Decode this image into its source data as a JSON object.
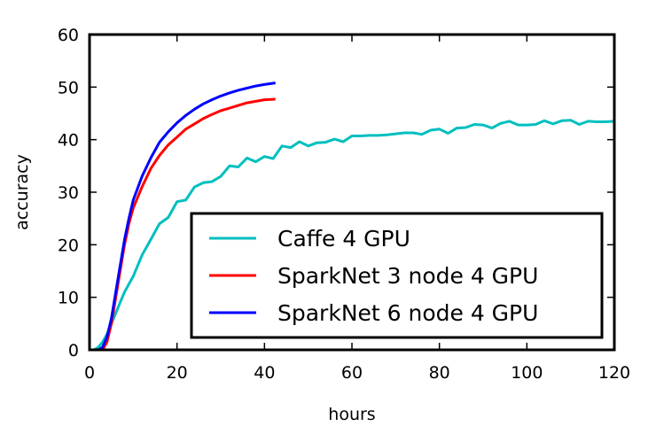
{
  "chart_data": {
    "type": "line",
    "xlabel": "hours",
    "ylabel": "accuracy",
    "xlim": [
      0,
      120
    ],
    "ylim": [
      0,
      60
    ],
    "xticks": [
      0,
      20,
      40,
      60,
      80,
      100,
      120
    ],
    "yticks": [
      0,
      10,
      20,
      30,
      40,
      50,
      60
    ],
    "grid": false,
    "legend_position": "lower-right",
    "series": [
      {
        "name": "Caffe 4 GPU",
        "color": "#00bfbf",
        "x": [
          0,
          1,
          2,
          3,
          4,
          5,
          6,
          7,
          8,
          10,
          12,
          14,
          16,
          18,
          20,
          22,
          24,
          26,
          28,
          30,
          32,
          34,
          36,
          38,
          40,
          42,
          44,
          46,
          48,
          50,
          52,
          54,
          56,
          58,
          60,
          62,
          64,
          66,
          68,
          70,
          72,
          74,
          76,
          78,
          80,
          82,
          84,
          86,
          88,
          90,
          92,
          94,
          96,
          98,
          100,
          102,
          104,
          106,
          108,
          110,
          112,
          114,
          116,
          118,
          120
        ],
        "y": [
          0,
          0,
          0.5,
          1.5,
          3,
          5,
          7,
          9,
          11,
          14,
          18,
          21,
          24,
          25.2,
          28.2,
          28.5,
          31,
          31.8,
          32,
          33,
          35,
          34.8,
          36.5,
          35.8,
          36.8,
          36.4,
          38.8,
          38.5,
          39.6,
          38.8,
          39.4,
          39.5,
          40.1,
          39.6,
          40.7,
          40.7,
          40.8,
          40.8,
          40.9,
          41.1,
          41.3,
          41.3,
          41.0,
          41.8,
          42.0,
          41.2,
          42.2,
          42.3,
          42.9,
          42.8,
          42.2,
          43.1,
          43.5,
          42.8,
          42.8,
          42.9,
          43.6,
          43.0,
          43.6,
          43.7,
          42.9,
          43.5,
          43.4,
          43.4,
          43.5
        ]
      },
      {
        "name": "SparkNet 3 node 4 GPU",
        "color": "#ff0000",
        "x": [
          0,
          1,
          2,
          3,
          4,
          5,
          6,
          7,
          8,
          9,
          10,
          12,
          14,
          16,
          18,
          20,
          22,
          24,
          26,
          28,
          30,
          32,
          34,
          36,
          38,
          40,
          42.5
        ],
        "y": [
          0,
          0,
          0,
          0,
          1.5,
          5,
          10,
          15,
          20,
          24,
          27,
          31,
          34.5,
          37,
          39,
          40.5,
          42,
          43,
          44,
          44.8,
          45.5,
          46,
          46.5,
          47,
          47.3,
          47.6,
          47.7
        ]
      },
      {
        "name": "SparkNet 6 node 4 GPU",
        "color": "#0000ff",
        "x": [
          0,
          1,
          2,
          3,
          4,
          5,
          6,
          7,
          8,
          9,
          10,
          12,
          14,
          16,
          18,
          20,
          22,
          24,
          26,
          28,
          30,
          32,
          34,
          36,
          38,
          40,
          42.5
        ],
        "y": [
          0,
          0,
          0,
          0.5,
          2.5,
          6,
          11,
          16,
          21,
          25,
          28.5,
          33,
          36.5,
          39.5,
          41.5,
          43.2,
          44.6,
          45.8,
          46.8,
          47.6,
          48.3,
          48.9,
          49.4,
          49.8,
          50.2,
          50.5,
          50.8
        ]
      }
    ]
  }
}
